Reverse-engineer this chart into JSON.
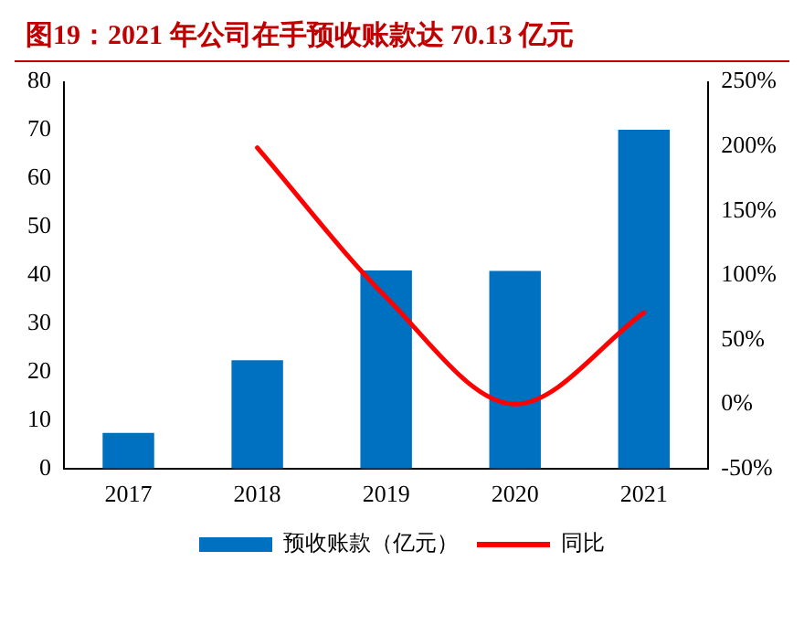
{
  "chart_data": {
    "type": "bar",
    "title": "图19：2021 年公司在手预收账款达 70.13 亿元",
    "categories": [
      "2017",
      "2018",
      "2019",
      "2020",
      "2021"
    ],
    "series": [
      {
        "name": "预收账款（亿元）",
        "color": "#0070c0",
        "values": [
          7.4,
          22.4,
          41,
          40.9,
          70.1
        ]
      },
      {
        "name": "同比",
        "type": "line",
        "axis": "y2",
        "color": "#ff0000",
        "values": [
          null,
          199,
          83,
          0,
          71
        ]
      }
    ],
    "ylim": [
      0,
      80
    ],
    "yticks": [
      0,
      10,
      20,
      30,
      40,
      50,
      60,
      70,
      80
    ],
    "y2lim": [
      -50,
      250
    ],
    "y2ticks": [
      {
        "value": -50,
        "label": "-50%"
      },
      {
        "value": 0,
        "label": "0%"
      },
      {
        "value": 50,
        "label": "50%"
      },
      {
        "value": 100,
        "label": "100%"
      },
      {
        "value": 150,
        "label": "150%"
      },
      {
        "value": 200,
        "label": "200%"
      },
      {
        "value": 250,
        "label": "250%"
      }
    ],
    "grid": false,
    "legend": "bottom",
    "marker": "none",
    "line_style": "solid"
  }
}
